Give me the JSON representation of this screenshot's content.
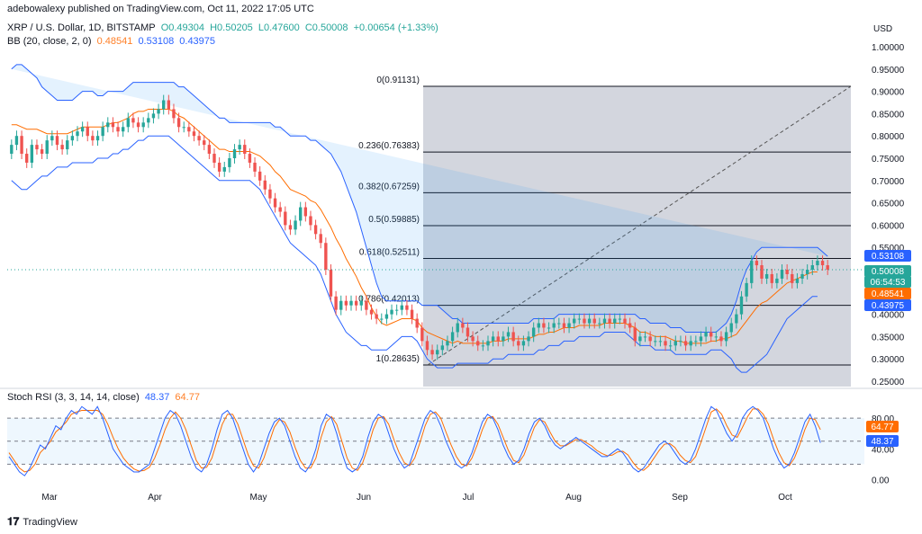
{
  "header": {
    "publish_line": "adebowalexy published on TradingView.com, Oct 11, 2022 17:05 UTC"
  },
  "legend": {
    "symbol": "XRP / U.S. Dollar, 1D, BITSTAMP",
    "open": "O0.49304",
    "high": "H0.50205",
    "low": "L0.47600",
    "close": "C0.50008",
    "change": "+0.00654 (+1.33%)",
    "bb_label": "BB (20, close, 2, 0)",
    "bb_basis": "0.48541",
    "bb_upper": "0.53108",
    "bb_lower": "0.43975",
    "rsi_label": "Stoch RSI (3, 3, 14, 14, close)",
    "rsi_k": "48.37",
    "rsi_d": "64.77"
  },
  "price_axis": {
    "currency": "USD",
    "ticks": [
      "1.00000",
      "0.95000",
      "0.90000",
      "0.85000",
      "0.80000",
      "0.75000",
      "0.70000",
      "0.65000",
      "0.60000",
      "0.55000",
      "0.50000",
      "0.45000",
      "0.40000",
      "0.35000",
      "0.30000",
      "0.25000"
    ],
    "tick_values": [
      1.0,
      0.95,
      0.9,
      0.85,
      0.8,
      0.75,
      0.7,
      0.65,
      0.6,
      0.55,
      0.5,
      0.45,
      0.4,
      0.35,
      0.3,
      0.25
    ],
    "badges": [
      {
        "label": "0.53108",
        "value": 0.53108,
        "color": "#2962ff"
      },
      {
        "label": "0.50008",
        "value": 0.50008,
        "color": "#26a69a"
      },
      {
        "label": "06:54:53",
        "value": 0.48,
        "color": "#26a69a"
      },
      {
        "label": "0.48541",
        "value": 0.48541,
        "color": "#ff6d00"
      },
      {
        "label": "0.43975",
        "value": 0.43975,
        "color": "#2962ff"
      }
    ]
  },
  "rsi_axis": {
    "ticks": [
      "80.00",
      "40.00",
      "0.00"
    ],
    "tick_values": [
      80,
      40,
      0
    ],
    "badges": [
      {
        "label": "64.77",
        "value": 64.77,
        "color": "#ff6d00"
      },
      {
        "label": "48.37",
        "value": 48.37,
        "color": "#2962ff"
      }
    ]
  },
  "time_axis": {
    "labels": [
      "Mar",
      "Apr",
      "May",
      "Jun",
      "Jul",
      "Aug",
      "Sep",
      "Oct"
    ]
  },
  "fibonacci": {
    "levels": [
      {
        "label": "0(0.91131)",
        "value": 0.91131
      },
      {
        "label": "0.236(0.76383)",
        "value": 0.76383
      },
      {
        "label": "0.382(0.67259)",
        "value": 0.67259
      },
      {
        "label": "0.5(0.59885)",
        "value": 0.59885
      },
      {
        "label": "0.618(0.52511)",
        "value": 0.52511
      },
      {
        "label": "0.786(0.42013)",
        "value": 0.42013
      },
      {
        "label": "1(0.28635)",
        "value": 0.28635
      }
    ]
  },
  "chart_data": {
    "type": "candlestick",
    "title": "XRP / U.S. Dollar, 1D, BITSTAMP",
    "ylim": [
      0.25,
      1.02
    ],
    "close": [
      0.78,
      0.8,
      0.76,
      0.74,
      0.78,
      0.77,
      0.76,
      0.79,
      0.8,
      0.78,
      0.77,
      0.79,
      0.8,
      0.81,
      0.82,
      0.8,
      0.79,
      0.8,
      0.82,
      0.83,
      0.82,
      0.81,
      0.82,
      0.84,
      0.83,
      0.82,
      0.83,
      0.84,
      0.85,
      0.86,
      0.88,
      0.86,
      0.84,
      0.82,
      0.82,
      0.81,
      0.8,
      0.79,
      0.78,
      0.76,
      0.74,
      0.72,
      0.73,
      0.75,
      0.77,
      0.78,
      0.76,
      0.74,
      0.72,
      0.7,
      0.68,
      0.66,
      0.64,
      0.63,
      0.6,
      0.59,
      0.61,
      0.64,
      0.62,
      0.6,
      0.58,
      0.56,
      0.5,
      0.44,
      0.41,
      0.43,
      0.42,
      0.43,
      0.42,
      0.43,
      0.41,
      0.4,
      0.39,
      0.39,
      0.4,
      0.41,
      0.41,
      0.42,
      0.41,
      0.39,
      0.37,
      0.34,
      0.32,
      0.31,
      0.32,
      0.33,
      0.34,
      0.36,
      0.38,
      0.37,
      0.35,
      0.34,
      0.33,
      0.33,
      0.34,
      0.35,
      0.34,
      0.35,
      0.36,
      0.34,
      0.33,
      0.34,
      0.35,
      0.37,
      0.38,
      0.37,
      0.37,
      0.38,
      0.38,
      0.37,
      0.38,
      0.39,
      0.39,
      0.38,
      0.39,
      0.38,
      0.38,
      0.39,
      0.38,
      0.39,
      0.39,
      0.38,
      0.37,
      0.34,
      0.35,
      0.35,
      0.34,
      0.34,
      0.34,
      0.33,
      0.33,
      0.34,
      0.34,
      0.33,
      0.34,
      0.34,
      0.35,
      0.36,
      0.35,
      0.35,
      0.34,
      0.36,
      0.38,
      0.4,
      0.44,
      0.47,
      0.52,
      0.51,
      0.48,
      0.49,
      0.47,
      0.48,
      0.5,
      0.49,
      0.47,
      0.48,
      0.49,
      0.5,
      0.51,
      0.52,
      0.51,
      0.5
    ],
    "open": [
      0.76,
      0.78,
      0.8,
      0.76,
      0.74,
      0.78,
      0.77,
      0.76,
      0.79,
      0.8,
      0.78,
      0.77,
      0.79,
      0.8,
      0.81,
      0.82,
      0.8,
      0.79,
      0.8,
      0.82,
      0.83,
      0.82,
      0.81,
      0.82,
      0.84,
      0.83,
      0.82,
      0.83,
      0.84,
      0.85,
      0.86,
      0.88,
      0.86,
      0.84,
      0.82,
      0.82,
      0.81,
      0.8,
      0.79,
      0.78,
      0.76,
      0.74,
      0.72,
      0.73,
      0.75,
      0.77,
      0.78,
      0.76,
      0.74,
      0.72,
      0.7,
      0.68,
      0.66,
      0.64,
      0.63,
      0.6,
      0.59,
      0.61,
      0.64,
      0.62,
      0.6,
      0.58,
      0.56,
      0.5,
      0.44,
      0.41,
      0.43,
      0.42,
      0.43,
      0.42,
      0.43,
      0.41,
      0.4,
      0.39,
      0.39,
      0.4,
      0.41,
      0.41,
      0.42,
      0.41,
      0.39,
      0.37,
      0.34,
      0.32,
      0.31,
      0.32,
      0.33,
      0.34,
      0.36,
      0.38,
      0.37,
      0.35,
      0.34,
      0.33,
      0.33,
      0.34,
      0.35,
      0.34,
      0.35,
      0.36,
      0.34,
      0.33,
      0.34,
      0.35,
      0.37,
      0.38,
      0.37,
      0.37,
      0.38,
      0.38,
      0.37,
      0.38,
      0.39,
      0.39,
      0.38,
      0.39,
      0.38,
      0.38,
      0.39,
      0.38,
      0.39,
      0.39,
      0.38,
      0.37,
      0.34,
      0.35,
      0.35,
      0.34,
      0.34,
      0.34,
      0.33,
      0.33,
      0.34,
      0.34,
      0.33,
      0.34,
      0.34,
      0.35,
      0.36,
      0.35,
      0.35,
      0.34,
      0.36,
      0.38,
      0.4,
      0.44,
      0.47,
      0.52,
      0.51,
      0.48,
      0.49,
      0.47,
      0.48,
      0.5,
      0.49,
      0.47,
      0.48,
      0.49,
      0.5,
      0.51,
      0.52,
      0.51
    ],
    "bb_upper": [
      0.95,
      0.96,
      0.96,
      0.95,
      0.94,
      0.93,
      0.91,
      0.9,
      0.89,
      0.88,
      0.88,
      0.88,
      0.88,
      0.89,
      0.9,
      0.9,
      0.9,
      0.89,
      0.89,
      0.9,
      0.9,
      0.9,
      0.9,
      0.91,
      0.92,
      0.92,
      0.92,
      0.92,
      0.92,
      0.92,
      0.92,
      0.92,
      0.92,
      0.91,
      0.91,
      0.9,
      0.89,
      0.88,
      0.87,
      0.86,
      0.85,
      0.84,
      0.84,
      0.83,
      0.83,
      0.83,
      0.83,
      0.83,
      0.83,
      0.83,
      0.83,
      0.83,
      0.82,
      0.82,
      0.81,
      0.8,
      0.8,
      0.8,
      0.8,
      0.79,
      0.79,
      0.78,
      0.77,
      0.76,
      0.74,
      0.72,
      0.69,
      0.66,
      0.63,
      0.59,
      0.55,
      0.51,
      0.47,
      0.44,
      0.43,
      0.43,
      0.43,
      0.43,
      0.43,
      0.43,
      0.43,
      0.42,
      0.42,
      0.42,
      0.42,
      0.41,
      0.4,
      0.39,
      0.39,
      0.38,
      0.38,
      0.38,
      0.38,
      0.38,
      0.38,
      0.38,
      0.38,
      0.38,
      0.38,
      0.38,
      0.38,
      0.38,
      0.38,
      0.39,
      0.39,
      0.39,
      0.39,
      0.39,
      0.4,
      0.4,
      0.4,
      0.4,
      0.4,
      0.4,
      0.4,
      0.4,
      0.4,
      0.4,
      0.4,
      0.4,
      0.4,
      0.4,
      0.4,
      0.4,
      0.39,
      0.39,
      0.38,
      0.38,
      0.38,
      0.38,
      0.37,
      0.37,
      0.37,
      0.36,
      0.36,
      0.36,
      0.36,
      0.36,
      0.36,
      0.36,
      0.37,
      0.38,
      0.4,
      0.43,
      0.47,
      0.5,
      0.52,
      0.54,
      0.55,
      0.55,
      0.55,
      0.55,
      0.55,
      0.55,
      0.55,
      0.55,
      0.55,
      0.55,
      0.55,
      0.55,
      0.54,
      0.53
    ],
    "bb_lower": [
      0.7,
      0.69,
      0.68,
      0.68,
      0.69,
      0.7,
      0.71,
      0.71,
      0.72,
      0.73,
      0.73,
      0.73,
      0.74,
      0.74,
      0.74,
      0.74,
      0.74,
      0.75,
      0.75,
      0.75,
      0.76,
      0.76,
      0.77,
      0.77,
      0.78,
      0.79,
      0.79,
      0.8,
      0.8,
      0.8,
      0.8,
      0.8,
      0.79,
      0.78,
      0.77,
      0.76,
      0.75,
      0.74,
      0.73,
      0.72,
      0.71,
      0.7,
      0.7,
      0.7,
      0.7,
      0.7,
      0.7,
      0.7,
      0.69,
      0.68,
      0.66,
      0.64,
      0.62,
      0.6,
      0.58,
      0.56,
      0.55,
      0.54,
      0.53,
      0.52,
      0.51,
      0.49,
      0.46,
      0.43,
      0.4,
      0.38,
      0.36,
      0.35,
      0.34,
      0.33,
      0.33,
      0.32,
      0.32,
      0.32,
      0.32,
      0.33,
      0.34,
      0.35,
      0.35,
      0.35,
      0.34,
      0.32,
      0.3,
      0.29,
      0.28,
      0.28,
      0.28,
      0.28,
      0.29,
      0.29,
      0.29,
      0.29,
      0.29,
      0.29,
      0.29,
      0.3,
      0.3,
      0.3,
      0.31,
      0.31,
      0.31,
      0.31,
      0.31,
      0.31,
      0.32,
      0.32,
      0.33,
      0.33,
      0.33,
      0.34,
      0.34,
      0.34,
      0.35,
      0.35,
      0.35,
      0.35,
      0.35,
      0.36,
      0.36,
      0.36,
      0.36,
      0.36,
      0.35,
      0.34,
      0.33,
      0.33,
      0.33,
      0.32,
      0.32,
      0.32,
      0.32,
      0.31,
      0.31,
      0.31,
      0.31,
      0.31,
      0.31,
      0.31,
      0.32,
      0.32,
      0.32,
      0.31,
      0.3,
      0.28,
      0.27,
      0.27,
      0.28,
      0.29,
      0.3,
      0.31,
      0.33,
      0.35,
      0.37,
      0.39,
      0.4,
      0.41,
      0.42,
      0.43,
      0.44,
      0.44
    ],
    "stoch_k": [
      30,
      20,
      10,
      5,
      15,
      30,
      45,
      40,
      55,
      70,
      65,
      80,
      90,
      85,
      95,
      90,
      85,
      95,
      80,
      60,
      40,
      30,
      20,
      15,
      10,
      10,
      15,
      20,
      40,
      60,
      80,
      90,
      85,
      70,
      50,
      30,
      15,
      10,
      20,
      40,
      65,
      85,
      90,
      80,
      60,
      40,
      20,
      10,
      20,
      40,
      60,
      75,
      80,
      70,
      50,
      30,
      15,
      10,
      20,
      40,
      70,
      85,
      80,
      60,
      35,
      15,
      10,
      15,
      30,
      55,
      75,
      85,
      80,
      60,
      40,
      25,
      15,
      20,
      40,
      60,
      80,
      90,
      85,
      70,
      50,
      35,
      20,
      15,
      20,
      35,
      55,
      75,
      85,
      80,
      65,
      45,
      30,
      20,
      25,
      40,
      60,
      75,
      80,
      70,
      55,
      45,
      40,
      45,
      50,
      55,
      50,
      45,
      40,
      35,
      30,
      30,
      35,
      40,
      35,
      25,
      15,
      10,
      15,
      25,
      35,
      45,
      50,
      45,
      35,
      25,
      20,
      25,
      40,
      60,
      80,
      95,
      90,
      75,
      60,
      50,
      60,
      80,
      90,
      95,
      90,
      80,
      60,
      40,
      25,
      15,
      20,
      35,
      55,
      75,
      85,
      70,
      48
    ],
    "stoch_d": [
      35,
      25,
      15,
      10,
      12,
      20,
      35,
      42,
      50,
      62,
      68,
      75,
      85,
      88,
      90,
      90,
      90,
      90,
      85,
      72,
      55,
      40,
      28,
      20,
      14,
      11,
      12,
      16,
      28,
      45,
      65,
      80,
      88,
      80,
      65,
      45,
      25,
      15,
      16,
      28,
      50,
      72,
      85,
      85,
      72,
      52,
      32,
      18,
      15,
      28,
      48,
      68,
      78,
      75,
      62,
      42,
      25,
      15,
      15,
      28,
      55,
      75,
      82,
      72,
      50,
      28,
      15,
      12,
      22,
      42,
      65,
      80,
      82,
      72,
      52,
      35,
      22,
      18,
      28,
      48,
      70,
      85,
      88,
      80,
      62,
      45,
      30,
      20,
      18,
      28,
      45,
      65,
      80,
      82,
      72,
      55,
      38,
      25,
      22,
      32,
      50,
      68,
      78,
      75,
      62,
      50,
      44,
      44,
      48,
      52,
      52,
      48,
      44,
      38,
      34,
      31,
      32,
      36,
      37,
      32,
      22,
      14,
      12,
      18,
      28,
      38,
      46,
      47,
      42,
      32,
      25,
      22,
      30,
      48,
      68,
      88,
      92,
      85,
      70,
      58,
      55,
      68,
      82,
      92,
      92,
      85,
      72,
      52,
      35,
      22,
      18,
      28,
      45,
      65,
      80,
      78,
      65
    ]
  },
  "footer": {
    "brand": "TradingView"
  }
}
